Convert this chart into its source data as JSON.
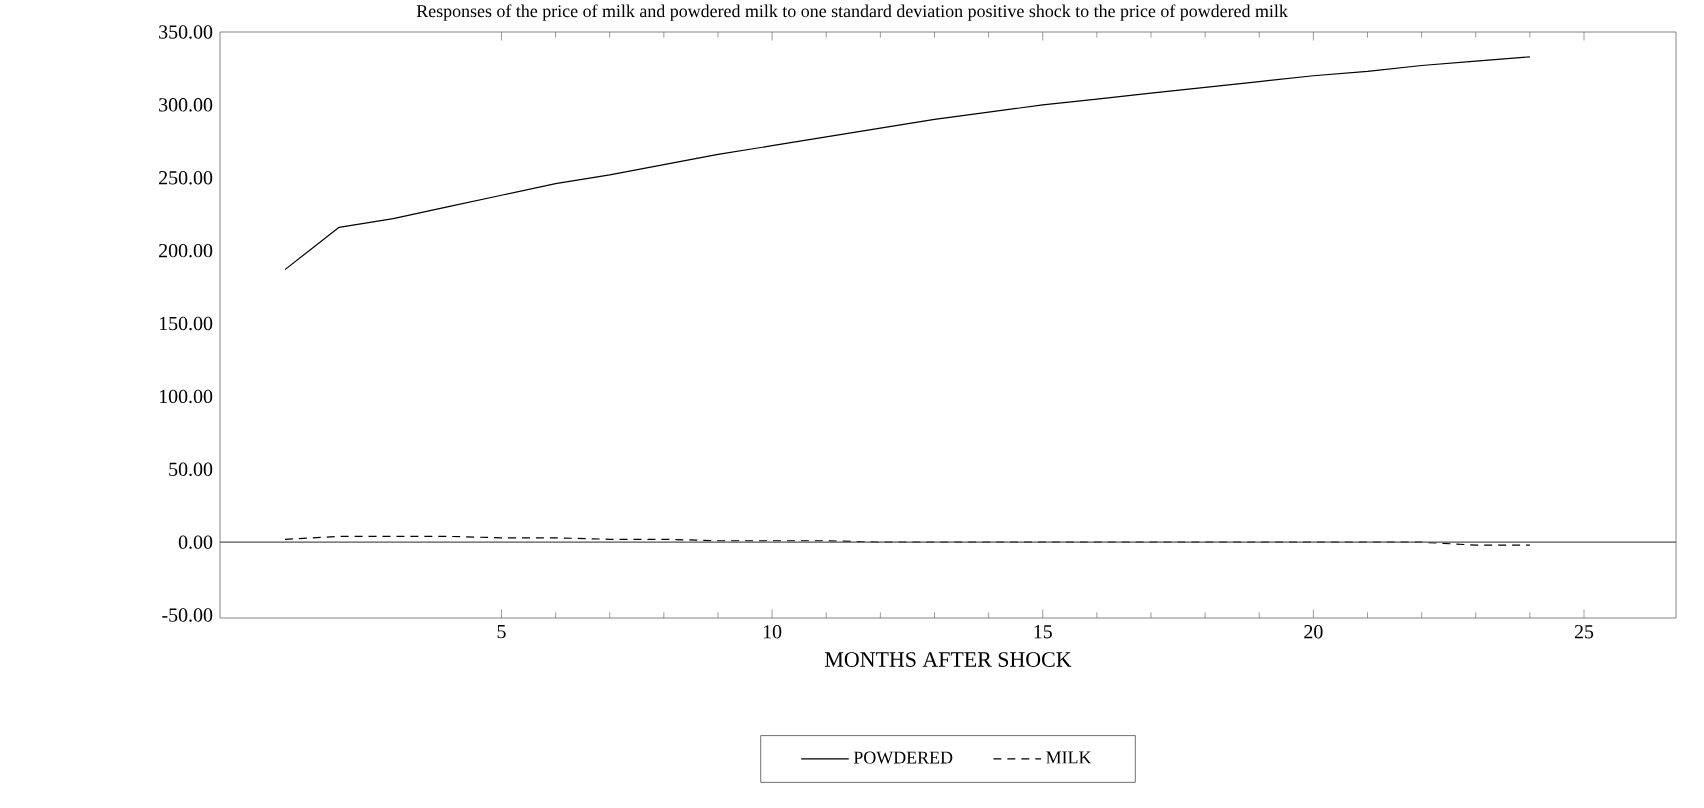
{
  "chart_data": {
    "type": "line",
    "title": "Responses of the price of milk and powdered milk to one standard deviation positive shock to the price of powdered milk",
    "xlabel": "MONTHS AFTER SHOCK",
    "x": [
      1,
      2,
      3,
      4,
      5,
      6,
      7,
      8,
      9,
      10,
      11,
      12,
      13,
      14,
      15,
      16,
      17,
      18,
      19,
      20,
      21,
      22,
      23,
      24
    ],
    "series": [
      {
        "name": "POWDERED",
        "color": "#000000",
        "line_style": "solid",
        "values": [
          187,
          216,
          222,
          230,
          238,
          246,
          252,
          259,
          266,
          272,
          278,
          284,
          290,
          295,
          300,
          304,
          308,
          312,
          316,
          320,
          323,
          327,
          330,
          333
        ]
      },
      {
        "name": "MILK",
        "color": "#000000",
        "line_style": "dashed",
        "values": [
          2,
          4,
          4,
          4,
          3,
          3,
          2,
          2,
          1,
          1,
          1,
          0,
          0,
          0,
          0,
          0,
          0,
          0,
          0,
          0,
          0,
          0,
          -2,
          -2
        ]
      }
    ],
    "xlim": [
      -0.2,
      26.7
    ],
    "ylim": [
      -52,
      350
    ],
    "xticks": [
      5,
      10,
      15,
      20,
      25
    ],
    "yticks": [
      {
        "value": 350,
        "label": "350.00"
      },
      {
        "value": 300,
        "label": "300.00"
      },
      {
        "value": 250,
        "label": "250.00"
      },
      {
        "value": 200,
        "label": "200.00"
      },
      {
        "value": 150,
        "label": "150.00"
      },
      {
        "value": 100,
        "label": "100.00"
      },
      {
        "value": 50,
        "label": "50.00"
      },
      {
        "value": 0,
        "label": "0.00"
      },
      {
        "value": -50,
        "label": "-50.00"
      }
    ],
    "ref_lines": [
      {
        "axis": "y",
        "value": 0,
        "color": "#555555"
      }
    ],
    "legend": "bottom",
    "grid": false,
    "marker": "none"
  }
}
